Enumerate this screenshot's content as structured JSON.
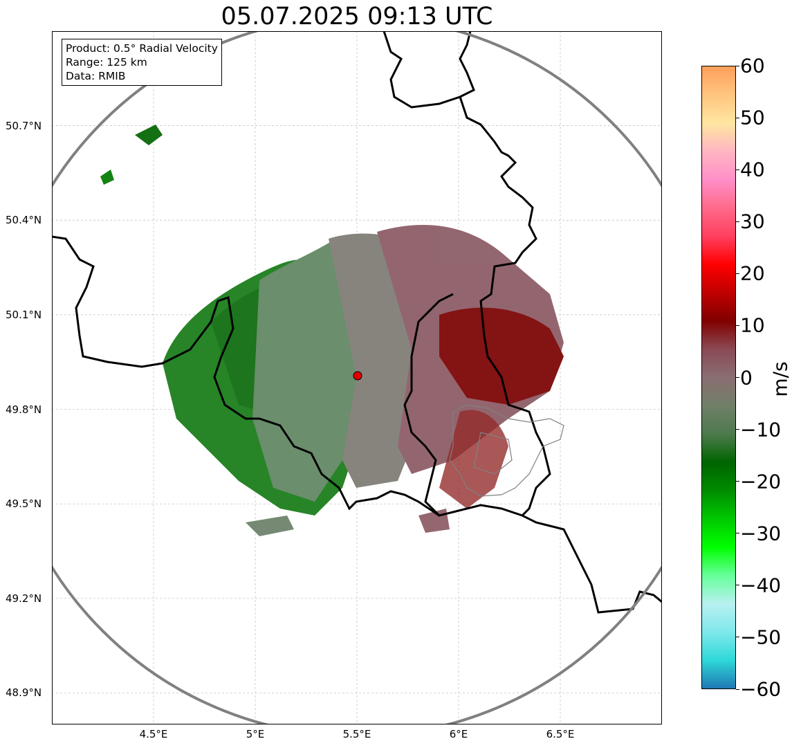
{
  "title": "05.07.2025 09:13 UTC",
  "info": {
    "product": "Product: 0.5° Radial Velocity",
    "range": "Range: 125 km",
    "data": "Data: RMIB"
  },
  "map": {
    "lon_range": [
      4.0,
      7.0
    ],
    "lat_range": [
      48.8,
      51.0
    ],
    "radar_lon": 5.505,
    "radar_lat": 49.914,
    "range_km": 125
  },
  "lat_ticks": [
    {
      "value": 50.7,
      "label": "50.7°N"
    },
    {
      "value": 50.4,
      "label": "50.4°N"
    },
    {
      "value": 50.1,
      "label": "50.1°N"
    },
    {
      "value": 49.8,
      "label": "49.8°N"
    },
    {
      "value": 49.5,
      "label": "49.5°N"
    },
    {
      "value": 49.2,
      "label": "49.2°N"
    },
    {
      "value": 48.9,
      "label": "48.9°N"
    }
  ],
  "lon_ticks": [
    {
      "value": 4.5,
      "label": "4.5°E"
    },
    {
      "value": 5.0,
      "label": "5°E"
    },
    {
      "value": 5.5,
      "label": "5.5°E"
    },
    {
      "value": 6.0,
      "label": "6°E"
    },
    {
      "value": 6.5,
      "label": "6.5°E"
    }
  ],
  "colorbar": {
    "label": "m/s",
    "min": -60,
    "max": 60,
    "ticks": [
      "60",
      "50",
      "40",
      "30",
      "20",
      "10",
      "0",
      "−10",
      "−20",
      "−30",
      "−40",
      "−50",
      "−60"
    ],
    "colors_top_to_bottom": [
      "#ff9f5a",
      "#ffc47f",
      "#ffe6a0",
      "#ffb6c1",
      "#ff8fc8",
      "#ff6a8a",
      "#ff4060",
      "#ff0000",
      "#c00000",
      "#800000",
      "#8b4a55",
      "#8a6e72",
      "#707f68",
      "#4d7a4d",
      "#006400",
      "#008c00",
      "#00c800",
      "#00ff00",
      "#66ff99",
      "#b8f0f0",
      "#80e8ec",
      "#2ed8d8",
      "#1f78b4"
    ]
  }
}
